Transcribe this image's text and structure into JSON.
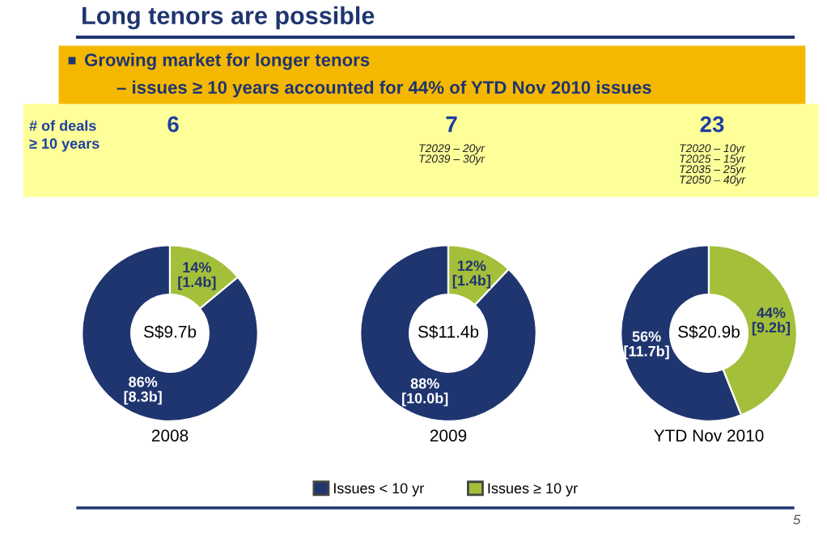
{
  "chart_data": [
    {
      "type": "other",
      "title": "Long tenors are possible",
      "annotations": [
        "Growing market for longer tenors",
        "– issues ≥ 10 years accounted for 44% of YTD Nov 2010 issues",
        "# of deals\n≥ 10 years",
        "5"
      ]
    },
    {
      "type": "donut",
      "xlabel": "2008",
      "categories": [
        "Issues < 10 yr",
        "Issues ≥ 10 yr"
      ],
      "values": [
        86,
        14
      ],
      "colors": [
        "#1f3570",
        "#a4bf3a"
      ],
      "value_labels": [
        "86%\n[8.3b]",
        "14%\n[1.4b]"
      ],
      "annotations": [
        "S$9.7b",
        "6"
      ],
      "legend": "bottom"
    },
    {
      "type": "donut",
      "xlabel": "2009",
      "categories": [
        null,
        null
      ],
      "values": [
        88,
        12
      ],
      "colors": [
        "#1f3570",
        "#a4bf3a"
      ],
      "value_labels": [
        "88%\n[10.0b]",
        "12%\n[1.4b]"
      ],
      "annotations": [
        "S$11.4b",
        "7",
        "T2029 – 20yr\nT2039 – 30yr"
      ]
    },
    {
      "type": "donut",
      "xlabel": "YTD Nov 2010",
      "categories": [
        null,
        null
      ],
      "values": [
        56,
        44
      ],
      "colors": [
        "#1f3570",
        "#a4bf3a"
      ],
      "value_labels": [
        "56%\n[11.7b]",
        "44%\n[9.2b]"
      ],
      "annotations": [
        "S$20.9b",
        "23",
        "T2020 – 10yr\nT2025 – 15yr\nT2035 – 25yr\nT2050 – 40yr"
      ]
    }
  ]
}
